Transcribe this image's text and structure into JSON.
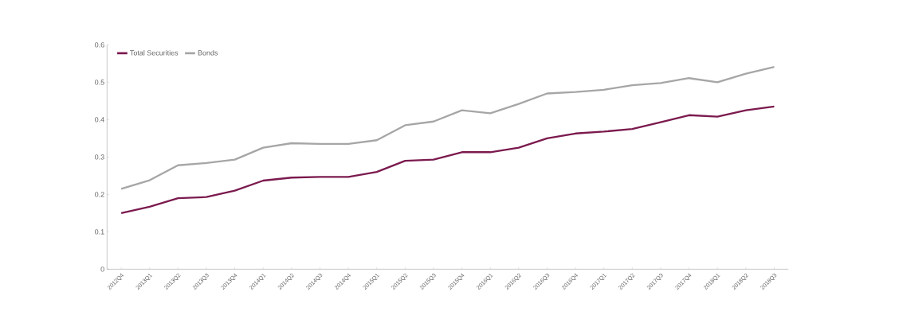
{
  "chart_data": {
    "type": "line",
    "categories": [
      "2012Q4",
      "2013Q1",
      "2013Q2",
      "2013Q3",
      "2013Q4",
      "2014Q1",
      "2014Q2",
      "2014Q3",
      "2014Q4",
      "2015Q1",
      "2015Q2",
      "2015Q3",
      "2015Q4",
      "2016Q1",
      "2016Q2",
      "2016Q3",
      "2016Q4",
      "2017Q1",
      "2017Q2",
      "2017Q3",
      "2017Q4",
      "2018Q1",
      "2018Q2",
      "2018Q3"
    ],
    "series": [
      {
        "name": "Total Securities",
        "color": "#7b1a4e",
        "values": [
          0.15,
          0.167,
          0.19,
          0.193,
          0.21,
          0.237,
          0.245,
          0.247,
          0.247,
          0.26,
          0.29,
          0.293,
          0.313,
          0.313,
          0.325,
          0.35,
          0.363,
          0.368,
          0.375,
          0.393,
          0.412,
          0.408,
          0.425,
          0.435
        ]
      },
      {
        "name": "Bonds",
        "color": "#a6a6a6",
        "values": [
          0.215,
          0.238,
          0.278,
          0.284,
          0.293,
          0.325,
          0.337,
          0.335,
          0.335,
          0.345,
          0.385,
          0.395,
          0.425,
          0.417,
          0.442,
          0.47,
          0.474,
          0.48,
          0.492,
          0.498,
          0.511,
          0.5,
          0.523,
          0.541
        ]
      }
    ],
    "ylim": [
      0,
      0.6
    ],
    "yticks": [
      0,
      0.1,
      0.2,
      0.3,
      0.4,
      0.5,
      0.6
    ],
    "legend": "top left",
    "grid": false,
    "marker": "none",
    "line_style": "solid"
  }
}
